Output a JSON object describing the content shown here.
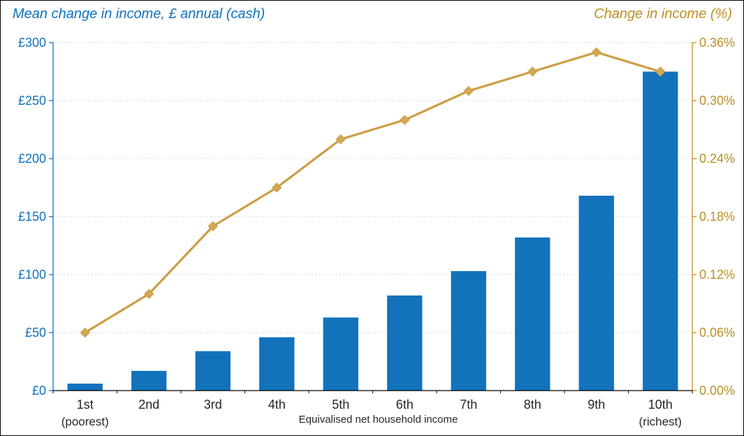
{
  "chart_data": {
    "type": "combo",
    "title_left": "Mean change in income, £ annual (cash)",
    "title_right": "Change in income (%)",
    "xlabel": "Equivalised net household income",
    "categories": [
      "1st",
      "2nd",
      "3rd",
      "4th",
      "5th",
      "6th",
      "7th",
      "8th",
      "9th",
      "10th"
    ],
    "category_sublabels": [
      "(poorest)",
      "",
      "",
      "",
      "",
      "",
      "",
      "",
      "",
      "(richest)"
    ],
    "series": [
      {
        "name": "Mean change in income, £ annual (cash)",
        "type": "bar",
        "axis": "left",
        "values": [
          6,
          17,
          34,
          46,
          63,
          82,
          103,
          132,
          168,
          275
        ],
        "color": "#1272BC"
      },
      {
        "name": "Change in income (%)",
        "type": "line",
        "axis": "right",
        "values": [
          0.06,
          0.1,
          0.17,
          0.21,
          0.26,
          0.28,
          0.31,
          0.33,
          0.35,
          0.33
        ],
        "color": "#CD9F47",
        "marker": "diamond",
        "marker_color": "#D2A856"
      }
    ],
    "left_axis": {
      "min": 0,
      "max": 300,
      "step": 50,
      "tick_labels": [
        "£0",
        "£50",
        "£100",
        "£150",
        "£200",
        "£250",
        "£300"
      ],
      "color": "#1272BC"
    },
    "right_axis": {
      "min": 0,
      "max": 0.36,
      "step": 0.06,
      "tick_labels": [
        "0.00%",
        "0.06%",
        "0.12%",
        "0.18%",
        "0.24%",
        "0.30%",
        "0.36%"
      ],
      "color": "#BC8F23"
    },
    "x_axis_color": "#000000",
    "x_label_color": "#262626",
    "gridline_color": "#d6d6d6",
    "grid": true,
    "legend": "none"
  }
}
